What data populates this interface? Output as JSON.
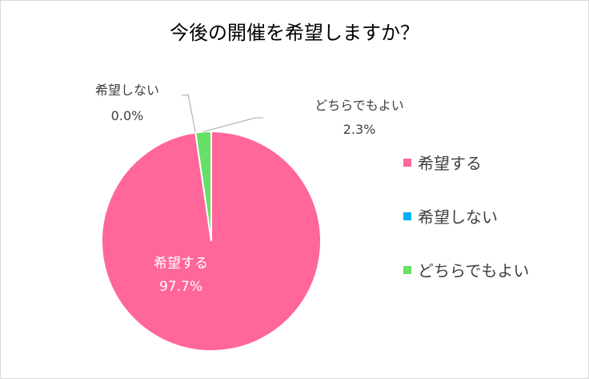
{
  "chart_data": {
    "type": "pie",
    "title": "今後の開催を希望しますか？",
    "slices": [
      {
        "label": "希望する",
        "value": 97.7,
        "display": "97.7%",
        "color": "#ff6699"
      },
      {
        "label": "希望しない",
        "value": 0.0,
        "display": "0.0%",
        "color": "#00b0f0"
      },
      {
        "label": "どちらでもよい",
        "value": 2.3,
        "display": "2.3%",
        "color": "#66e066"
      }
    ],
    "legend_position": "right"
  }
}
